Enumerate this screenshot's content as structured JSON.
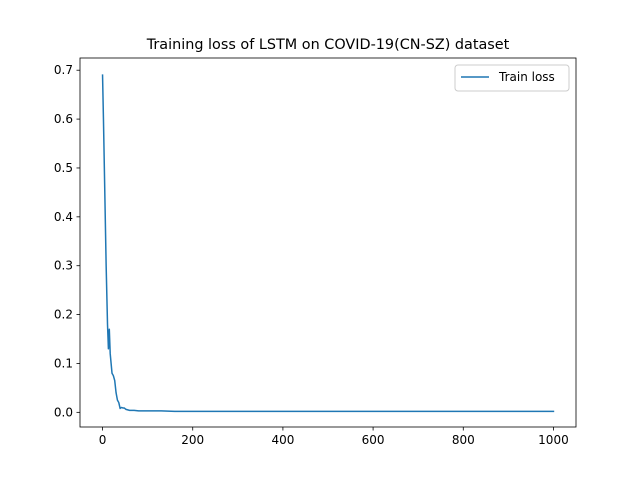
{
  "chart_data": {
    "type": "line",
    "title": "Training loss of LSTM on COVID-19(CN-SZ) dataset",
    "xlabel": "",
    "ylabel": "",
    "xlim": [
      -50,
      1050
    ],
    "ylim": [
      -0.03,
      0.725
    ],
    "x_ticks": [
      0,
      200,
      400,
      600,
      800,
      1000
    ],
    "y_ticks": [
      0.0,
      0.1,
      0.2,
      0.3,
      0.4,
      0.5,
      0.6,
      0.7
    ],
    "y_tick_labels": [
      "0.0",
      "0.1",
      "0.2",
      "0.3",
      "0.4",
      "0.5",
      "0.6",
      "0.7"
    ],
    "grid": false,
    "legend_position": "top-right",
    "series": [
      {
        "name": "Train loss",
        "color": "#1f77b4",
        "x": [
          0,
          2,
          5,
          8,
          11,
          13,
          15,
          17,
          19,
          21,
          24,
          27,
          30,
          33,
          36,
          39,
          42,
          45,
          48,
          52,
          56,
          60,
          70,
          80,
          100,
          130,
          160,
          200,
          300,
          400,
          500,
          600,
          700,
          800,
          900,
          1000
        ],
        "y": [
          0.69,
          0.6,
          0.45,
          0.3,
          0.18,
          0.13,
          0.17,
          0.12,
          0.1,
          0.08,
          0.075,
          0.065,
          0.04,
          0.025,
          0.02,
          0.008,
          0.01,
          0.009,
          0.009,
          0.006,
          0.005,
          0.004,
          0.004,
          0.003,
          0.003,
          0.003,
          0.002,
          0.002,
          0.002,
          0.002,
          0.002,
          0.002,
          0.002,
          0.002,
          0.002,
          0.002
        ]
      }
    ]
  }
}
